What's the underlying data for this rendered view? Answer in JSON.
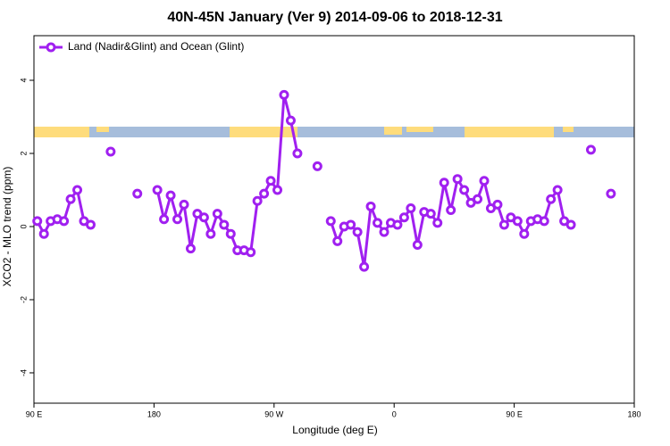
{
  "chart_data": {
    "type": "line",
    "title": "40N-45N January (Ver 9)   2014-09-06 to 2018-12-31",
    "x_label": "Longitude (deg E)",
    "y_label": "XCO2 - MLO trend (ppm)",
    "xlim": [
      90,
      540
    ],
    "ylim": [
      -4.83,
      5.22
    ],
    "xticks": [
      {
        "value": 90,
        "label": "90 E"
      },
      180,
      {
        "value": 270,
        "label": "90 W"
      },
      {
        "value": 360,
        "label": "0"
      },
      {
        "value": 450,
        "label": "90 E"
      },
      {
        "value": 540,
        "label": "180"
      }
    ],
    "yticks": [
      -4,
      -2,
      0,
      2,
      4
    ],
    "legend": "top-left",
    "series": [
      {
        "name": "Land (Nadir&Glint) and Ocean (Glint)",
        "color": "#a020f0",
        "x": [
          92.5,
          97.5,
          102.5,
          107.5,
          112.5,
          117.5,
          122.5,
          127.5,
          132.5,
          137.5,
          147.5,
          152.5,
          167.5,
          172.5,
          182.5,
          187.5,
          192.5,
          197.5,
          202.5,
          207.5,
          212.5,
          217.5,
          222.5,
          227.5,
          232.5,
          237.5,
          242.5,
          247.5,
          252.5,
          257.5,
          262.5,
          267.5,
          272.5,
          277.5,
          282.5,
          287.5,
          292.5,
          302.5,
          307.5,
          312.5,
          317.5,
          322.5,
          327.5,
          332.5,
          337.5,
          342.5,
          347.5,
          352.5,
          357.5,
          362.5,
          367.5,
          372.5,
          377.5,
          382.5,
          387.5,
          392.5,
          397.5,
          402.5,
          407.5,
          412.5,
          417.5,
          422.5,
          427.5,
          432.5,
          437.5,
          442.5,
          447.5,
          452.5,
          457.5,
          462.5,
          467.5,
          472.5,
          477.5,
          482.5,
          487.5,
          492.5,
          497.5,
          507.5,
          512.5,
          522.5
        ],
        "values": [
          0.15,
          -0.2,
          0.15,
          0.2,
          0.15,
          0.75,
          1.0,
          0.15,
          0.05,
          null,
          2.05,
          null,
          0.9,
          null,
          1.0,
          0.2,
          0.85,
          0.2,
          0.6,
          -0.6,
          0.35,
          0.25,
          -0.2,
          0.35,
          0.05,
          -0.2,
          -0.65,
          -0.65,
          -0.7,
          0.7,
          0.9,
          1.25,
          1.0,
          3.6,
          2.9,
          2.0,
          null,
          1.65,
          null,
          0.15,
          -0.4,
          0,
          0.05,
          -0.15,
          -1.1,
          0.55,
          0.1,
          -0.15,
          0.1,
          0.05,
          0.25,
          0.5,
          -0.5,
          0.4,
          0.35,
          0.1,
          1.2,
          0.45,
          1.3,
          1.0,
          0.65,
          0.75,
          1.25,
          0.5,
          0.6,
          0.05,
          0.25,
          0.15,
          -0.2,
          0.15,
          0.2,
          0.15,
          0.75,
          1.0,
          0.15,
          0.05,
          null,
          2.1,
          null,
          0.9
        ]
      }
    ]
  }
}
